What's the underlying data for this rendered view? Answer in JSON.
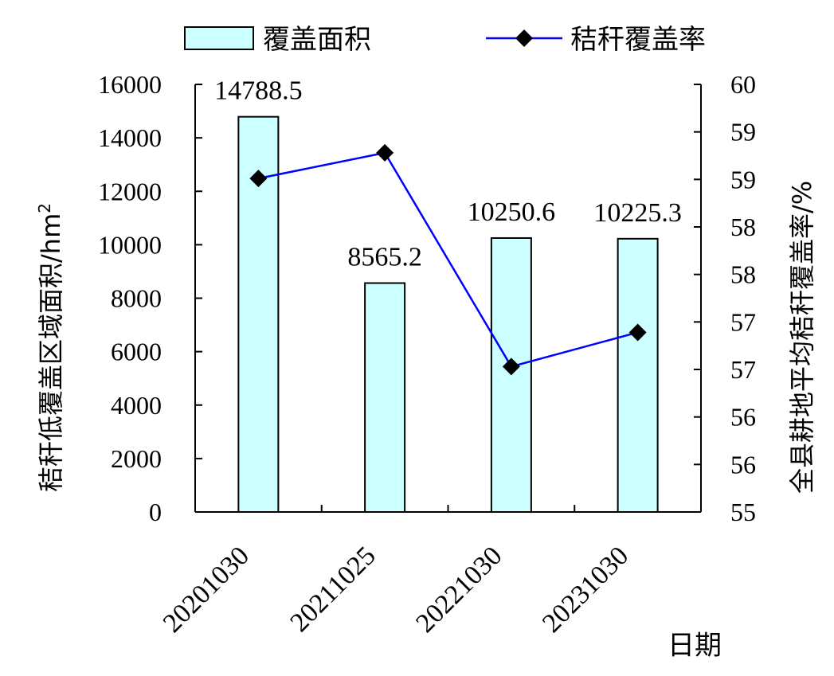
{
  "chart_data": {
    "type": "bar",
    "categories": [
      "20201030",
      "20211025",
      "20221030",
      "20231030"
    ],
    "series": [
      {
        "name": "覆盖面积",
        "type": "bar",
        "axis": "left",
        "values": [
          14788.5,
          8565.2,
          10250.6,
          10225.3
        ],
        "data_labels": [
          "14788.5",
          "8565.2",
          "10250.6",
          "10225.3"
        ],
        "fill": "#ccffff",
        "stroke": "#000000"
      },
      {
        "name": "秸秆覆盖率",
        "type": "line",
        "axis": "right",
        "values": [
          58.9,
          59.2,
          56.7,
          57.1
        ],
        "color": "#0000ff",
        "marker_color": "#000000",
        "marker": "diamond"
      }
    ],
    "xlabel": "日期",
    "ylabel_left": "秸秆低覆盖区域面积/hm",
    "ylabel_left_sup": "2",
    "ylabel_right": "全县耕地平均秸秆覆盖率/%",
    "ylim_left": [
      0,
      16000
    ],
    "yticks_left": [
      "0",
      "2000",
      "4000",
      "6000",
      "8000",
      "10000",
      "12000",
      "14000",
      "16000"
    ],
    "ylim_right": [
      55,
      60
    ],
    "yticks_right": [
      "55",
      "56",
      "56",
      "57",
      "57",
      "58",
      "58",
      "59",
      "59",
      "60"
    ],
    "grid": false,
    "legend_position": "top"
  }
}
